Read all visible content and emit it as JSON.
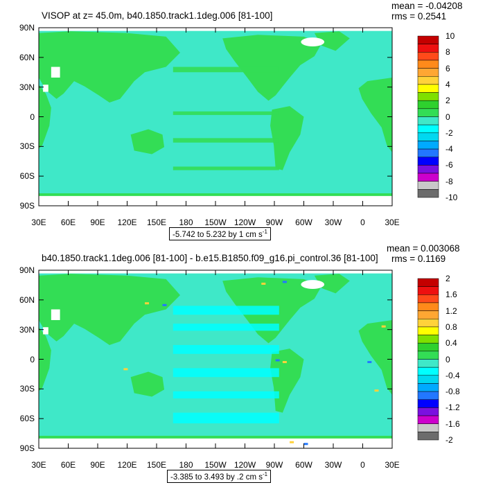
{
  "panels": [
    {
      "title": "VISOP at z=  45.0m, b40.1850.track1.1deg.006 [81-100]",
      "mean_label": "mean = -0.04208",
      "rms_label": "rms = 0.2541",
      "range_text": "-5.742 to 5.232 by 1 cm s",
      "range_exp": "-1",
      "colorbar_labels": [
        "10",
        "8",
        "6",
        "4",
        "2",
        "0",
        "-2",
        "-4",
        "-6",
        "-8",
        "-10"
      ]
    },
    {
      "title": "b40.1850.track1.1deg.006 [81-100] - b.e15.B1850.f09_g16.pi_control.36 [81-100]",
      "mean_label": "mean = 0.003068",
      "rms_label": "rms = 0.1169",
      "range_text": "-3.385 to 3.493 by .2 cm s",
      "range_exp": "-1",
      "colorbar_labels": [
        "2",
        "1.6",
        "1.2",
        "0.8",
        "0.4",
        "0",
        "-0.4",
        "-0.8",
        "-1.2",
        "-1.6",
        "-2"
      ]
    }
  ],
  "lat_labels": [
    "90N",
    "60N",
    "30N",
    "0",
    "30S",
    "60S",
    "90S"
  ],
  "lon_labels": [
    "30E",
    "60E",
    "90E",
    "120E",
    "150E",
    "180",
    "150W",
    "120W",
    "90W",
    "60W",
    "30W",
    "0",
    "30E"
  ],
  "colors": {
    "ocean_dominant": "#3fe8c8",
    "land_green": "#33dd55",
    "cyan": "#00ffff",
    "colorbar": [
      "#c40000",
      "#ee1010",
      "#ff4a1a",
      "#ff8a1a",
      "#ffa733",
      "#ffd23a",
      "#ffff00",
      "#7fe000",
      "#2ed12e",
      "#33dd55",
      "#3fe8c8",
      "#00ffff",
      "#00d8f0",
      "#00aaff",
      "#2277ff",
      "#0000ff",
      "#7a10e0",
      "#cc00cc",
      "#c8c8c8",
      "#6c6c6c"
    ]
  }
}
